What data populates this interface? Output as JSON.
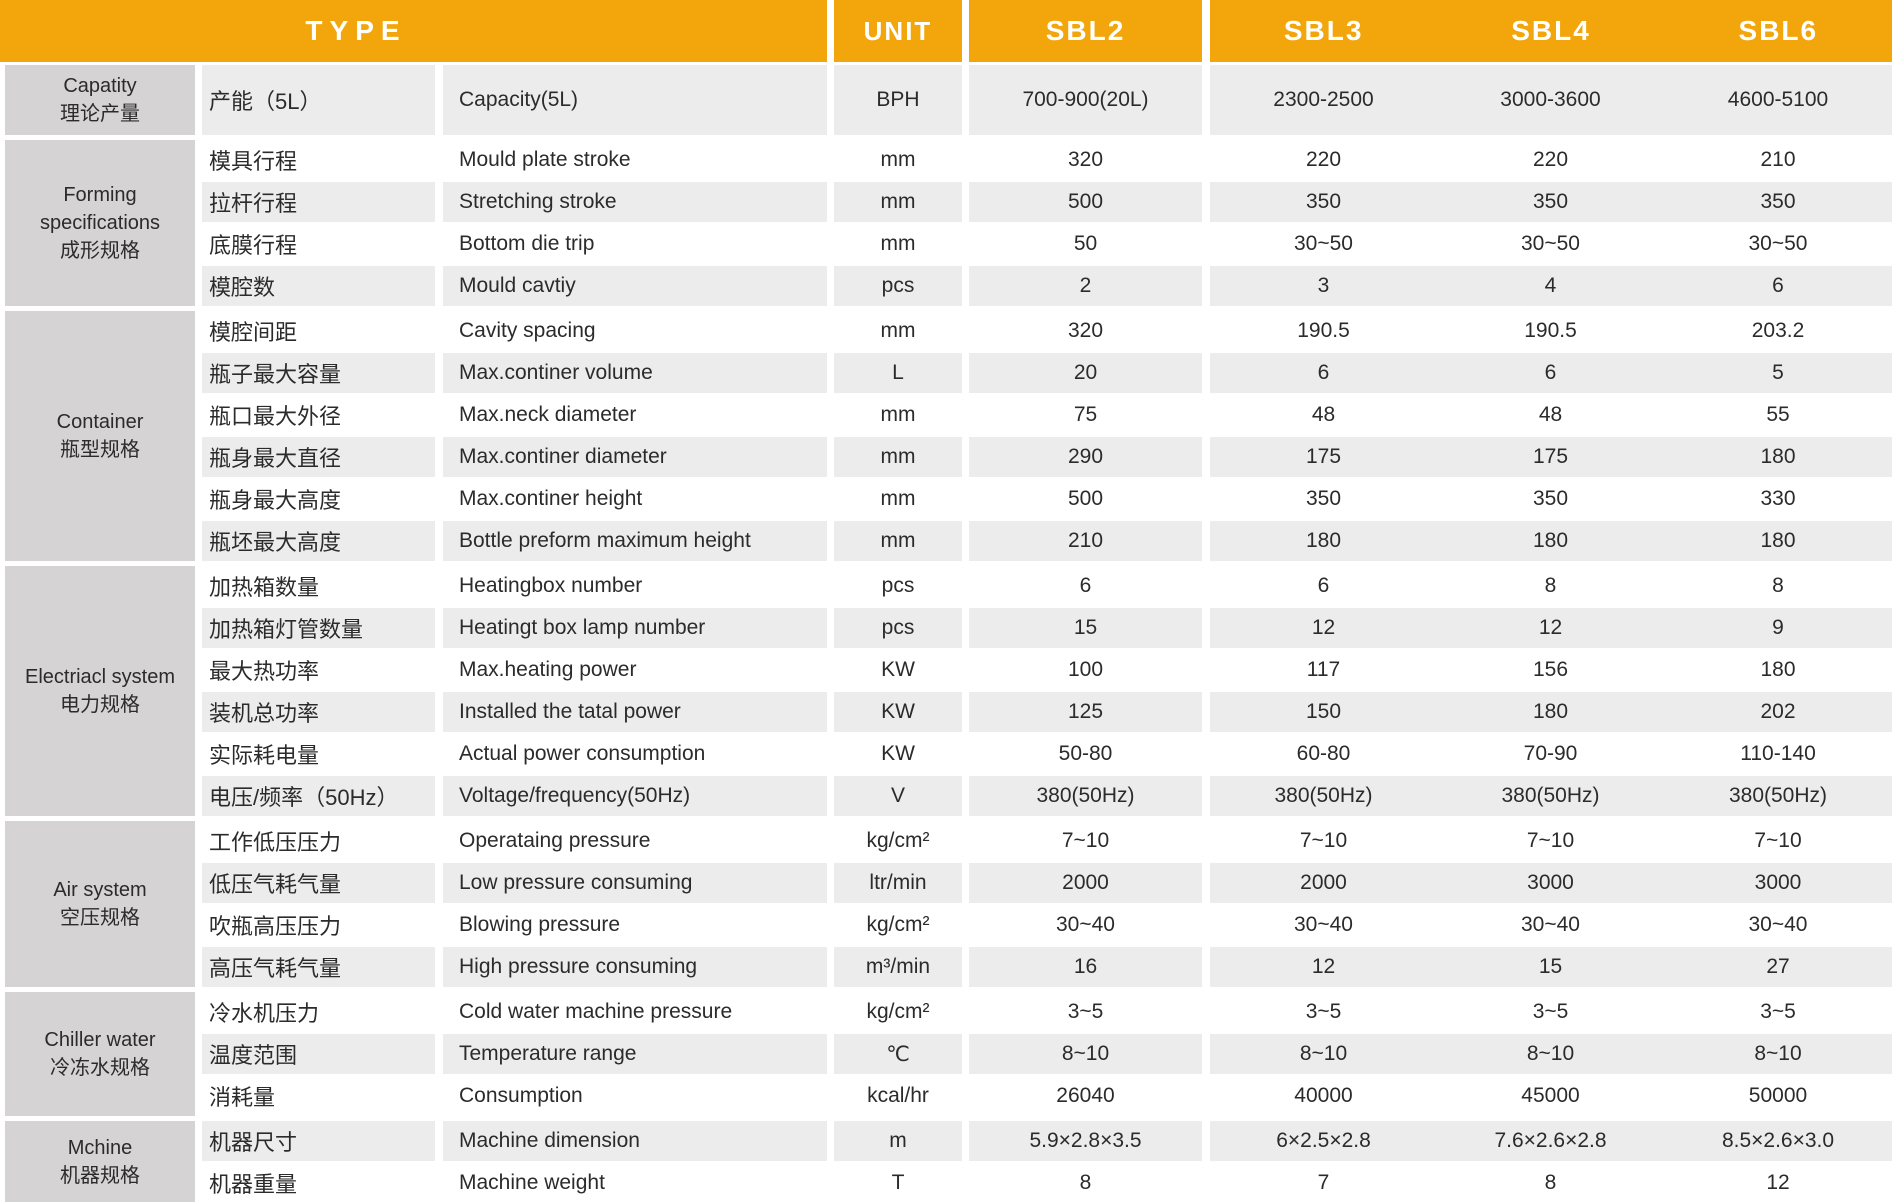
{
  "header": {
    "type_label": "TYPE",
    "unit_label": "UNIT",
    "models": [
      "SBL2",
      "SBL3",
      "SBL4",
      "SBL6"
    ]
  },
  "colors": {
    "header_bg": "#F2A60C",
    "header_text": "#FFFFFF",
    "group_label_bg": "#D5D3D3",
    "row_stripe_bg": "#ECECEC",
    "text": "#2B2B2B"
  },
  "groups": [
    {
      "en": "Capatity",
      "cn": "理论产量",
      "rows": [
        {
          "cn": "产能（5L）",
          "en": "Capacity(5L)",
          "unit": "BPH",
          "values": [
            "700-900(20L)",
            "2300-2500",
            "3000-3600",
            "4600-5100"
          ]
        }
      ]
    },
    {
      "en": "Forming specifications",
      "cn": "成形规格",
      "rows": [
        {
          "cn": "模具行程",
          "en": "Mould plate stroke",
          "unit": "mm",
          "values": [
            "320",
            "220",
            "220",
            "210"
          ]
        },
        {
          "cn": "拉杆行程",
          "en": "Stretching stroke",
          "unit": "mm",
          "values": [
            "500",
            "350",
            "350",
            "350"
          ]
        },
        {
          "cn": "底膜行程",
          "en": "Bottom die trip",
          "unit": "mm",
          "values": [
            "50",
            "30~50",
            "30~50",
            "30~50"
          ]
        },
        {
          "cn": "模腔数",
          "en": "Mould cavtiy",
          "unit": "pcs",
          "values": [
            "2",
            "3",
            "4",
            "6"
          ]
        }
      ]
    },
    {
      "en": "Container",
      "cn": "瓶型规格",
      "rows": [
        {
          "cn": "模腔间距",
          "en": "Cavity spacing",
          "unit": "mm",
          "values": [
            "320",
            "190.5",
            "190.5",
            "203.2"
          ]
        },
        {
          "cn": "瓶子最大容量",
          "en": "Max.continer volume",
          "unit": "L",
          "values": [
            "20",
            "6",
            "6",
            "5"
          ]
        },
        {
          "cn": "瓶口最大外径",
          "en": "Max.neck diameter",
          "unit": "mm",
          "values": [
            "75",
            "48",
            "48",
            "55"
          ]
        },
        {
          "cn": "瓶身最大直径",
          "en": "Max.continer diameter",
          "unit": "mm",
          "values": [
            "290",
            "175",
            "175",
            "180"
          ]
        },
        {
          "cn": "瓶身最大高度",
          "en": "Max.continer height",
          "unit": "mm",
          "values": [
            "500",
            "350",
            "350",
            "330"
          ]
        },
        {
          "cn": "瓶坯最大高度",
          "en": "Bottle preform maximum height",
          "unit": "mm",
          "values": [
            "210",
            "180",
            "180",
            "180"
          ]
        }
      ]
    },
    {
      "en": "Electriacl system",
      "cn": "电力规格",
      "rows": [
        {
          "cn": "加热箱数量",
          "en": "Heatingbox number",
          "unit": "pcs",
          "values": [
            "6",
            "6",
            "8",
            "8"
          ]
        },
        {
          "cn": "加热箱灯管数量",
          "en": "Heatingt box lamp number",
          "unit": "pcs",
          "values": [
            "15",
            "12",
            "12",
            "9"
          ]
        },
        {
          "cn": "最大热功率",
          "en": "Max.heating power",
          "unit": "KW",
          "values": [
            "100",
            "117",
            "156",
            "180"
          ]
        },
        {
          "cn": "装机总功率",
          "en": "Installed the tatal power",
          "unit": "KW",
          "values": [
            "125",
            "150",
            "180",
            "202"
          ]
        },
        {
          "cn": "实际耗电量",
          "en": "Actual power consumption",
          "unit": "KW",
          "values": [
            "50-80",
            "60-80",
            "70-90",
            "110-140"
          ]
        },
        {
          "cn": "电压/频率（50Hz）",
          "en": "Voltage/frequency(50Hz)",
          "unit": "V",
          "values": [
            "380(50Hz)",
            "380(50Hz)",
            "380(50Hz)",
            "380(50Hz)"
          ]
        }
      ]
    },
    {
      "en": "Air system",
      "cn": "空压规格",
      "rows": [
        {
          "cn": "工作低压压力",
          "en": "Operataing pressure",
          "unit": "kg/cm²",
          "values": [
            "7~10",
            "7~10",
            "7~10",
            "7~10"
          ]
        },
        {
          "cn": "低压气耗气量",
          "en": "Low pressure consuming",
          "unit": "ltr/min",
          "values": [
            "2000",
            "2000",
            "3000",
            "3000"
          ]
        },
        {
          "cn": "吹瓶高压压力",
          "en": "Blowing pressure",
          "unit": "kg/cm²",
          "values": [
            "30~40",
            "30~40",
            "30~40",
            "30~40"
          ]
        },
        {
          "cn": "高压气耗气量",
          "en": "High pressure consuming",
          "unit": "m³/min",
          "values": [
            "16",
            "12",
            "15",
            "27"
          ]
        }
      ]
    },
    {
      "en": "Chiller water",
      "cn": "冷冻水规格",
      "rows": [
        {
          "cn": "冷水机压力",
          "en": "Cold water machine pressure",
          "unit": "kg/cm²",
          "values": [
            "3~5",
            "3~5",
            "3~5",
            "3~5"
          ]
        },
        {
          "cn": "温度范围",
          "en": "Temperature range",
          "unit": "℃",
          "values": [
            "8~10",
            "8~10",
            "8~10",
            "8~10"
          ]
        },
        {
          "cn": "消耗量",
          "en": "Consumption",
          "unit": "kcal/hr",
          "values": [
            "26040",
            "40000",
            "45000",
            "50000"
          ]
        }
      ]
    },
    {
      "en": "Mchine",
      "cn": "机器规格",
      "rows": [
        {
          "cn": "机器尺寸",
          "en": "Machine dimension",
          "unit": "m",
          "values": [
            "5.9×2.8×3.5",
            "6×2.5×2.8",
            "7.6×2.6×2.8",
            "8.5×2.6×3.0"
          ]
        },
        {
          "cn": "机器重量",
          "en": "Machine weight",
          "unit": "T",
          "values": [
            "8",
            "7",
            "8",
            "12"
          ]
        }
      ]
    }
  ]
}
